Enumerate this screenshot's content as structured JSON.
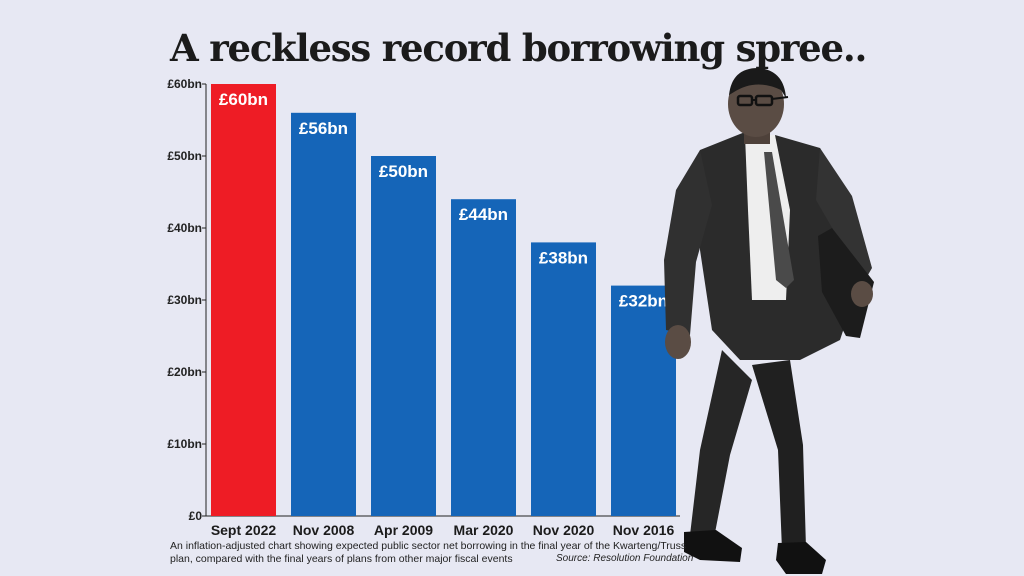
{
  "chart_data": {
    "type": "bar",
    "title": "A reckless record borrowing spree..",
    "categories": [
      "Sept 2022",
      "Nov 2008",
      "Apr 2009",
      "Mar 2020",
      "Nov 2020",
      "Nov 2016"
    ],
    "values": [
      60,
      56,
      50,
      44,
      38,
      32
    ],
    "data_labels": [
      "£60bn",
      "£56bn",
      "£50bn",
      "£44bn",
      "£38bn",
      "£32bn"
    ],
    "bar_colors": [
      "#ee1c25",
      "#1565b8",
      "#1565b8",
      "#1565b8",
      "#1565b8",
      "#1565b8"
    ],
    "ylim": [
      0,
      60
    ],
    "yticks": [
      0,
      10,
      20,
      30,
      40,
      50,
      60
    ],
    "ytick_labels": [
      "£0",
      "£10bn",
      "£20bn",
      "£30bn",
      "£40bn",
      "£50bn",
      "£60bn"
    ],
    "xlabel": "",
    "ylabel": "",
    "grid": false,
    "legend": "none"
  },
  "caption": "An inflation-adjusted chart showing expected public sector net borrowing in the final year of the Kwarteng/Truss plan, compared with the final years of plans from other major fiscal events",
  "source": "Source: Resolution Foundation",
  "photo": {
    "icon": "man-in-suit-walking-photo"
  }
}
